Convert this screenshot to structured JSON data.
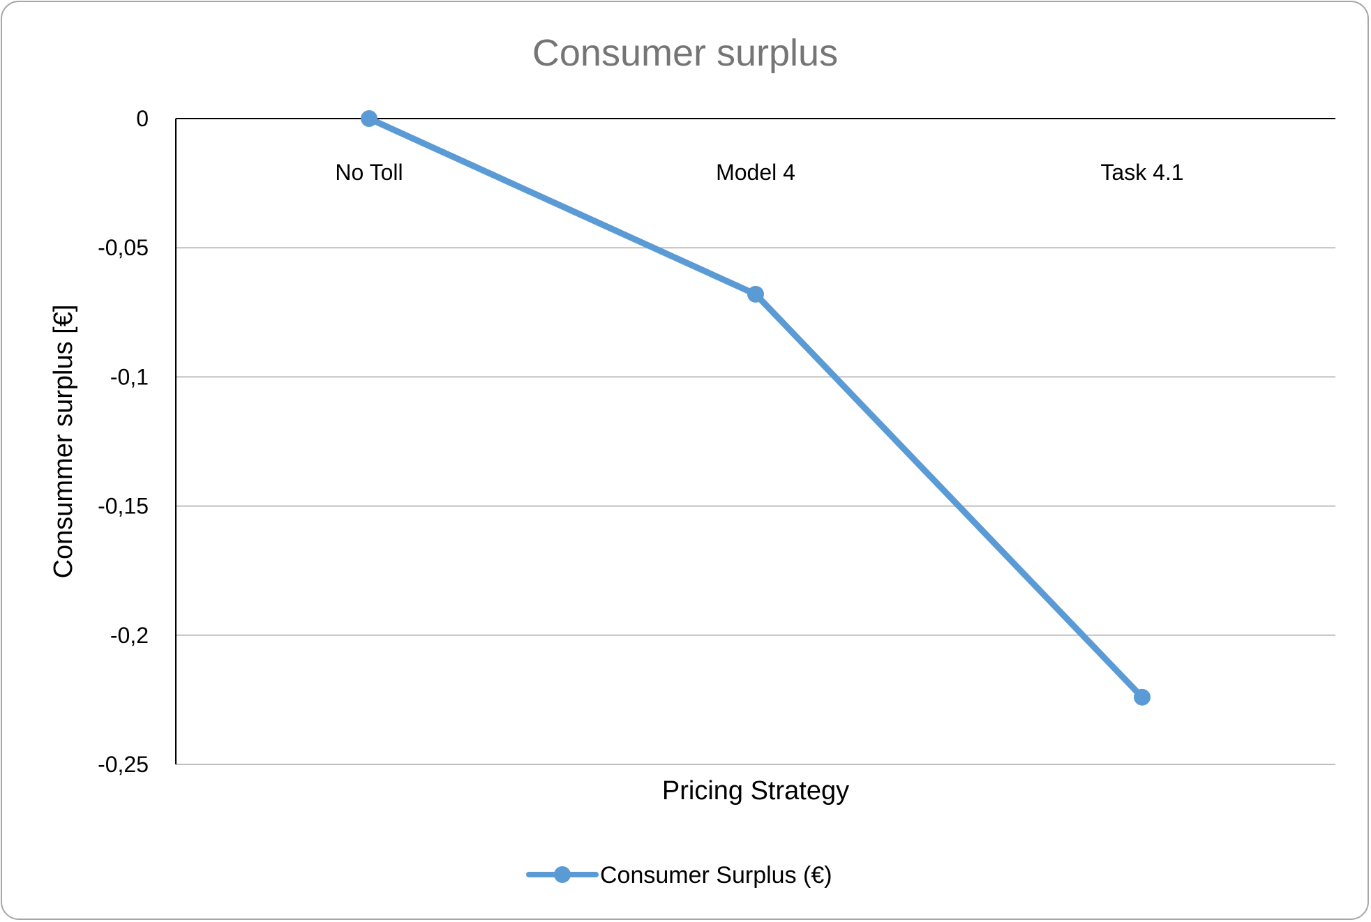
{
  "chart_data": {
    "type": "line",
    "title": "Consumer surplus",
    "xlabel": "Pricing Strategy",
    "ylabel": "Consummer surplus [€]",
    "categories": [
      "No Toll",
      "Model 4",
      "Task 4.1"
    ],
    "series": [
      {
        "name": "Consumer Surplus (€)",
        "values": [
          0,
          -0.068,
          -0.224
        ],
        "color": "#5b9bd5"
      }
    ],
    "ylim": [
      -0.25,
      0
    ],
    "yticks": [
      0,
      -0.05,
      -0.1,
      -0.15,
      -0.2,
      -0.25
    ],
    "ytick_labels": [
      "0",
      "-0,05",
      "-0,1",
      "-0,15",
      "-0,2",
      "-0,25"
    ],
    "grid": true,
    "legend": "bottom",
    "gridline_color": "#bfbfbf",
    "axis_color": "#000000"
  }
}
